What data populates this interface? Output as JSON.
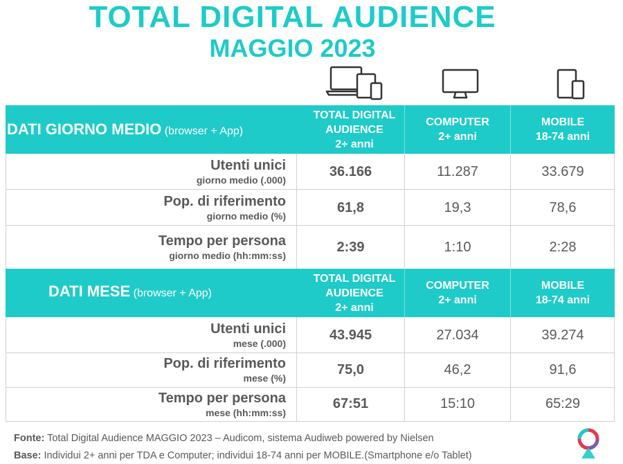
{
  "header": {
    "title": "TOTAL DIGITAL AUDIENCE",
    "subtitle": "MAGGIO 2023"
  },
  "icons": [
    "all-devices-icon",
    "computer-monitor-icon",
    "mobile-devices-icon"
  ],
  "colors": {
    "accent": "#1ecbc8",
    "text": "#595959"
  },
  "section_day": {
    "label": "DATI GIORNO MEDIO",
    "label_note": "(browser + App)",
    "columns": [
      {
        "line1": "TOTAL DIGITAL",
        "line2": "AUDIENCE",
        "line3": "2+ anni"
      },
      {
        "line1": "COMPUTER",
        "line2": "2+ anni"
      },
      {
        "line1": "MOBILE",
        "line2": "18-74 anni"
      }
    ],
    "rows": [
      {
        "label": "Utenti unici",
        "sublabel": "giorno medio (.000)",
        "tda": "36.166",
        "computer": "11.287",
        "mobile": "33.679"
      },
      {
        "label": "Pop. di riferimento",
        "sublabel": "giorno medio (%)",
        "tda": "61,8",
        "computer": "19,3",
        "mobile": "78,6"
      },
      {
        "label": "Tempo per persona",
        "sublabel": "giorno medio (hh:mm:ss)",
        "tda": "2:39",
        "computer": "1:10",
        "mobile": "2:28"
      }
    ]
  },
  "section_month": {
    "label": "DATI MESE",
    "label_note": "(browser + App)",
    "columns": [
      {
        "line1": "TOTAL DIGITAL",
        "line2": "AUDIENCE",
        "line3": "2+ anni"
      },
      {
        "line1": "COMPUTER",
        "line2": "2+ anni"
      },
      {
        "line1": "MOBILE",
        "line2": "18-74 anni"
      }
    ],
    "rows": [
      {
        "label": "Utenti unici",
        "sublabel": "mese (.000)",
        "tda": "43.945",
        "computer": "27.034",
        "mobile": "39.274"
      },
      {
        "label": "Pop. di riferimento",
        "sublabel": "mese (%)",
        "tda": "75,0",
        "computer": "46,2",
        "mobile": "91,6"
      },
      {
        "label": "Tempo per persona",
        "sublabel": "mese (hh:mm:ss)",
        "tda": "67:51",
        "computer": "15:10",
        "mobile": "65:29"
      }
    ]
  },
  "footer": {
    "fonte_label": "Fonte:",
    "fonte_text": "Total Digital Audience MAGGIO 2023  – Audicom, sistema Audiweb  powered by Nielsen",
    "base_label": "Base:",
    "base_text": "Individui 2+ anni per TDA e Computer; individui 18-74 anni per MOBILE.(Smartphone e/o Tablet)"
  }
}
